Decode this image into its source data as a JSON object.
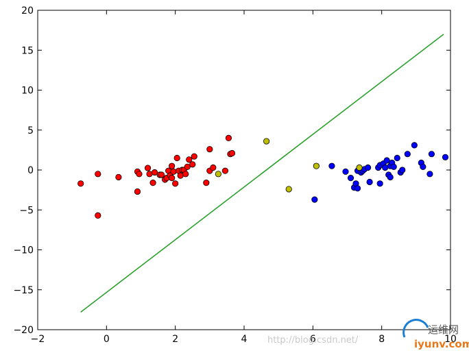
{
  "chart_data": {
    "type": "scatter",
    "title": "",
    "xlabel": "",
    "ylabel": "",
    "xlim": [
      -2,
      10
    ],
    "ylim": [
      -20,
      20
    ],
    "xticks": [
      -2,
      0,
      2,
      4,
      6,
      8,
      10
    ],
    "yticks": [
      -20,
      -15,
      -10,
      -5,
      0,
      5,
      10,
      15,
      20
    ],
    "grid": false,
    "legend": "none",
    "series": [
      {
        "color": "#ff0000",
        "points": [
          [
            -0.75,
            -1.7
          ],
          [
            -0.25,
            -0.5
          ],
          [
            -0.25,
            -5.7
          ],
          [
            0.35,
            -0.9
          ],
          [
            0.9,
            -0.2
          ],
          [
            0.9,
            -2.7
          ],
          [
            0.95,
            -0.5
          ],
          [
            1.2,
            0.25
          ],
          [
            1.25,
            -0.5
          ],
          [
            1.35,
            -1.6
          ],
          [
            1.4,
            -0.3
          ],
          [
            1.55,
            -0.6
          ],
          [
            1.6,
            -0.6
          ],
          [
            1.7,
            -1.2
          ],
          [
            1.75,
            -1.0
          ],
          [
            1.8,
            -0.1
          ],
          [
            1.85,
            -0.7
          ],
          [
            1.9,
            -1.0
          ],
          [
            1.9,
            0.5
          ],
          [
            1.95,
            -0.2
          ],
          [
            2.0,
            -1.7
          ],
          [
            2.05,
            1.5
          ],
          [
            2.1,
            -0.1
          ],
          [
            2.15,
            -0.7
          ],
          [
            2.2,
            0.0
          ],
          [
            2.25,
            0.0
          ],
          [
            2.3,
            -0.5
          ],
          [
            2.35,
            0.4
          ],
          [
            2.4,
            1.3
          ],
          [
            2.5,
            0.7
          ],
          [
            2.55,
            1.7
          ],
          [
            2.9,
            -1.6
          ],
          [
            3.0,
            -0.1
          ],
          [
            3.0,
            2.6
          ],
          [
            3.1,
            0.3
          ],
          [
            3.45,
            -0.1
          ],
          [
            3.55,
            4.0
          ],
          [
            3.6,
            2.0
          ],
          [
            3.65,
            2.1
          ]
        ]
      },
      {
        "color": "#0000ff",
        "points": [
          [
            6.05,
            -3.7
          ],
          [
            6.55,
            0.5
          ],
          [
            6.95,
            -0.2
          ],
          [
            7.1,
            -1.0
          ],
          [
            7.2,
            -2.2
          ],
          [
            7.25,
            -1.7
          ],
          [
            7.3,
            -2.3
          ],
          [
            7.3,
            -0.1
          ],
          [
            7.4,
            -0.3
          ],
          [
            7.45,
            -0.1
          ],
          [
            7.5,
            0.1
          ],
          [
            7.6,
            0.3
          ],
          [
            7.65,
            -1.5
          ],
          [
            7.9,
            0.3
          ],
          [
            7.95,
            0.6
          ],
          [
            7.95,
            -1.7
          ],
          [
            8.05,
            0.8
          ],
          [
            8.1,
            0.3
          ],
          [
            8.15,
            1.2
          ],
          [
            8.2,
            -0.6
          ],
          [
            8.25,
            -0.9
          ],
          [
            8.25,
            0.5
          ],
          [
            8.3,
            0.9
          ],
          [
            8.35,
            0.4
          ],
          [
            8.45,
            1.5
          ],
          [
            8.55,
            -0.3
          ],
          [
            8.6,
            0.0
          ],
          [
            8.75,
            2.0
          ],
          [
            8.95,
            3.1
          ],
          [
            9.15,
            0.9
          ],
          [
            9.2,
            0.4
          ],
          [
            9.4,
            -0.5
          ],
          [
            9.45,
            2.0
          ],
          [
            9.85,
            1.6
          ]
        ]
      },
      {
        "color": "#bfbf00",
        "points": [
          [
            3.25,
            -0.5
          ],
          [
            4.65,
            3.6
          ],
          [
            5.3,
            -2.4
          ],
          [
            6.1,
            0.5
          ],
          [
            7.35,
            0.3
          ]
        ]
      }
    ],
    "line": {
      "color": "#2ca02c",
      "x": [
        -0.75,
        9.8
      ],
      "y": [
        -17.8,
        17.0
      ]
    }
  },
  "watermark": {
    "url_text": "http://blog.csdn.net/",
    "logo_cn": "运维网",
    "logo_en": "iyunv.com"
  }
}
